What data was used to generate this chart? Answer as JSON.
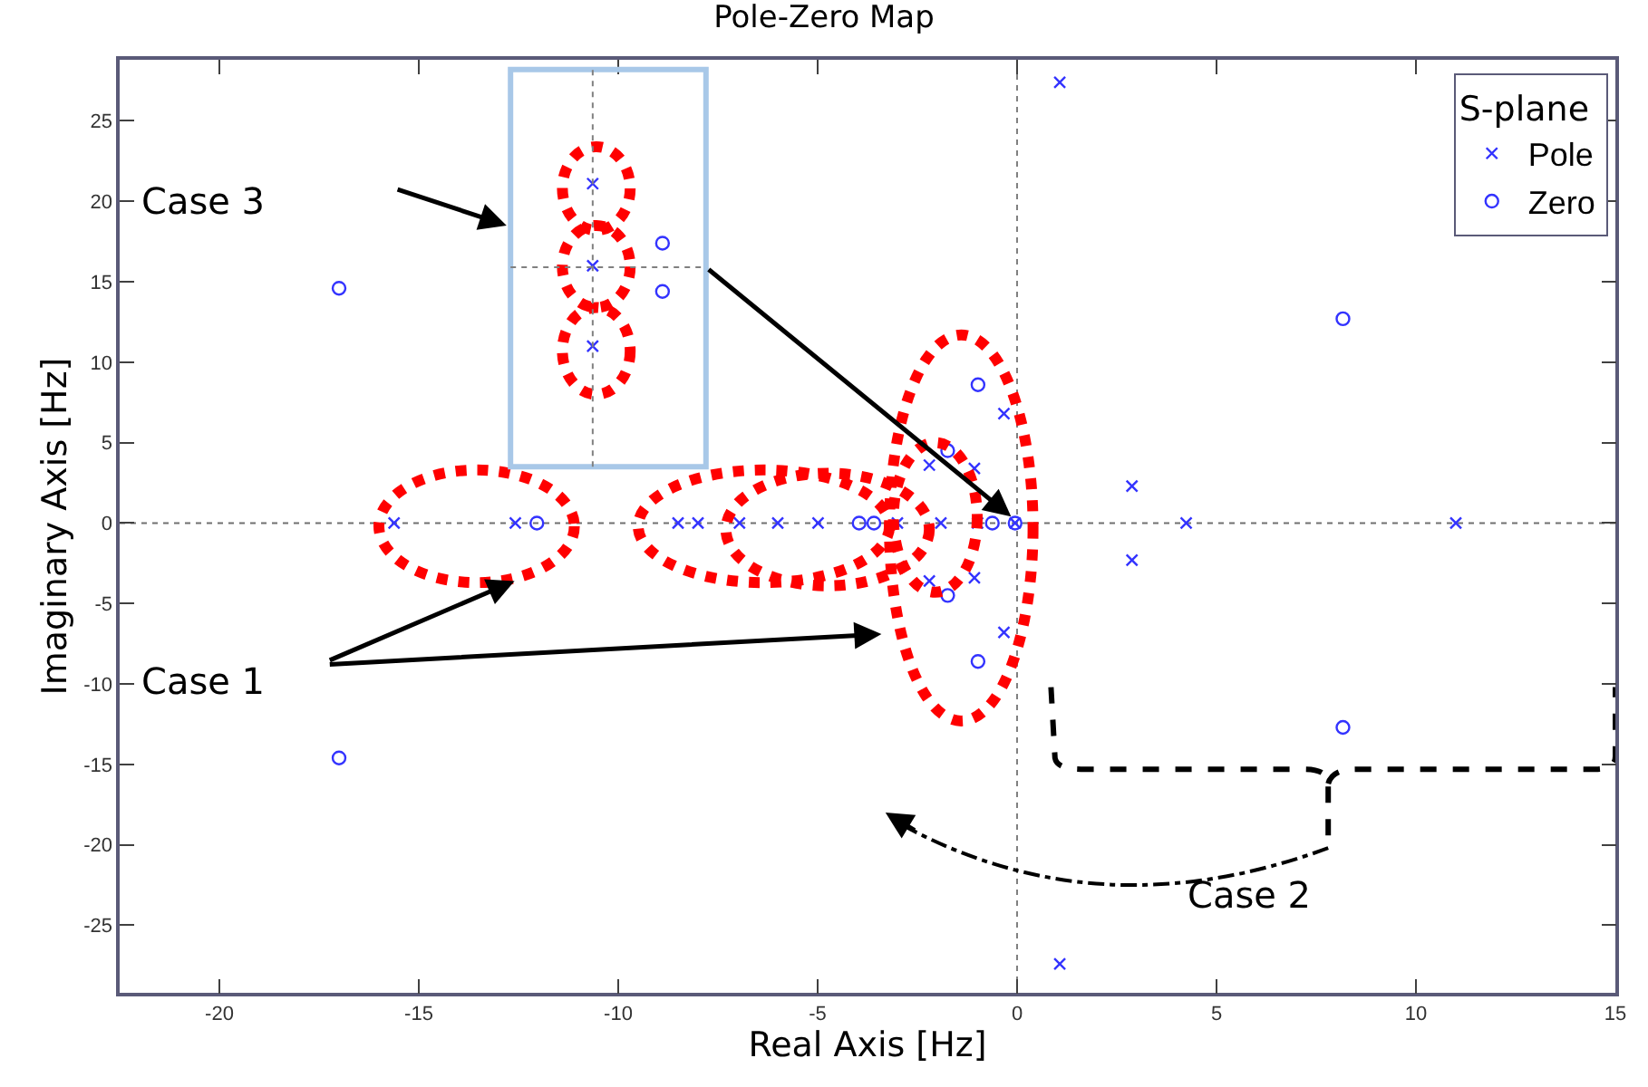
{
  "chart_data": {
    "type": "scatter",
    "title": "Pole-Zero Map",
    "xlabel": "Real Axis [Hz]",
    "ylabel": "Imaginary Axis [Hz]",
    "legend_title": "S-plane",
    "xlim": [
      -22.5,
      15
    ],
    "ylim": [
      -29.2,
      28.8
    ],
    "xticks": [
      -20,
      -15,
      -10,
      -5,
      0,
      5,
      10,
      15
    ],
    "yticks": [
      -25,
      -20,
      -15,
      -10,
      -5,
      0,
      5,
      10,
      15,
      20,
      25
    ],
    "grid": false,
    "legend": "top right",
    "ref_lines": [
      {
        "axis": "x",
        "value": 0,
        "line_style": "dotted",
        "color": "#808080"
      },
      {
        "axis": "y",
        "value": 0,
        "line_style": "dotted",
        "color": "#707070"
      }
    ],
    "annotations": [
      "Case 3",
      "Case 1",
      "Case 2"
    ],
    "series": [
      {
        "name": "Pole",
        "color": "#3333ff",
        "marker": "cross",
        "x": [
          1.07,
          1.07,
          -10.64,
          -10.64,
          -10.64,
          -15.62,
          -12.58,
          -8.5,
          -8.0,
          -6.96,
          -6.0,
          -4.99,
          -3.0,
          -1.91,
          -0.99,
          -0.05,
          4.24,
          11.0,
          -0.33,
          -0.33,
          -2.2,
          -2.2,
          -1.07,
          -1.07,
          2.88,
          2.88
        ],
        "values": [
          27.4,
          -27.4,
          21.1,
          16.0,
          11.0,
          0,
          0,
          0,
          0,
          0,
          0,
          0,
          0,
          0,
          0,
          0,
          0,
          0,
          6.8,
          -6.8,
          3.6,
          -3.6,
          3.4,
          -3.4,
          2.3,
          -2.3
        ]
      },
      {
        "name": "Zero",
        "color": "#3333ff",
        "marker": "circle",
        "x": [
          -17.0,
          -17.0,
          8.17,
          8.17,
          -8.89,
          -8.89,
          -0.98,
          -0.98,
          -1.74,
          -1.74,
          -12.04,
          -3.96,
          -3.59,
          -0.62,
          -0.05
        ],
        "values": [
          14.6,
          -14.6,
          12.7,
          -12.7,
          17.4,
          14.4,
          8.6,
          -8.6,
          4.5,
          -4.5,
          0,
          0,
          0,
          0,
          0
        ]
      }
    ]
  }
}
